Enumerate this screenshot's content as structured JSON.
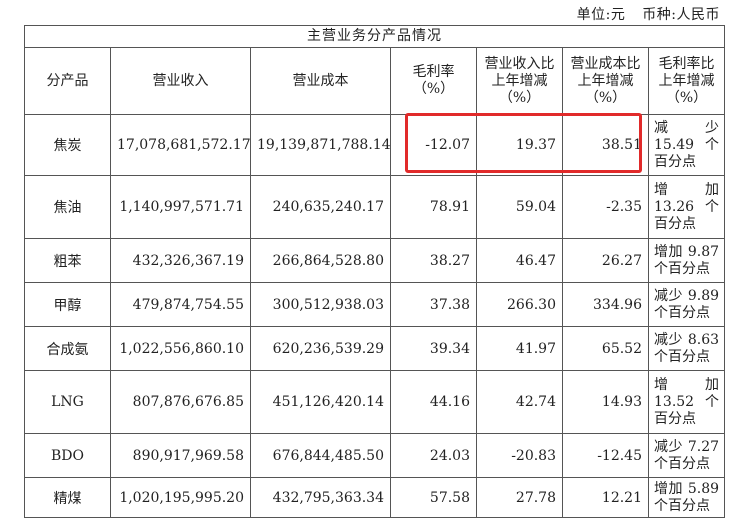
{
  "unit_line": {
    "unit": "单位:元",
    "currency": "币种:人民币"
  },
  "table": {
    "title": "主营业务分产品情况",
    "headers": {
      "product": "分产品",
      "revenue": "营业收入",
      "cost": "营业成本",
      "margin": "毛利率（%）",
      "revenue_change": "营业收入比上年增减（%）",
      "cost_change": "营业成本比上年增减（%）",
      "margin_change": "毛利率比上年增减（%）"
    },
    "rows": [
      {
        "product": "焦炭",
        "revenue": "17,078,681,572.17",
        "cost": "19,139,871,788.14",
        "margin": "-12.07",
        "revenue_change": "19.37",
        "cost_change": "38.51",
        "margin_change": "减少15.49个百分点"
      },
      {
        "product": "焦油",
        "revenue": "1,140,997,571.71",
        "cost": "240,635,240.17",
        "margin": "78.91",
        "revenue_change": "59.04",
        "cost_change": "-2.35",
        "margin_change": "增加13.26个百分点"
      },
      {
        "product": "粗苯",
        "revenue": "432,326,367.19",
        "cost": "266,864,528.80",
        "margin": "38.27",
        "revenue_change": "46.47",
        "cost_change": "26.27",
        "margin_change": "增加 9.87个百分点"
      },
      {
        "product": "甲醇",
        "revenue": "479,874,754.55",
        "cost": "300,512,938.03",
        "margin": "37.38",
        "revenue_change": "266.30",
        "cost_change": "334.96",
        "margin_change": "减少 9.89个百分点"
      },
      {
        "product": "合成氨",
        "revenue": "1,022,556,860.10",
        "cost": "620,236,539.29",
        "margin": "39.34",
        "revenue_change": "41.97",
        "cost_change": "65.52",
        "margin_change": "减少 8.63个百分点"
      },
      {
        "product": "LNG",
        "revenue": "807,876,676.85",
        "cost": "451,126,420.14",
        "margin": "44.16",
        "revenue_change": "42.74",
        "cost_change": "14.93",
        "margin_change": "增加13.52个百分点"
      },
      {
        "product": "BDO",
        "revenue": "890,917,969.58",
        "cost": "676,844,485.50",
        "margin": "24.03",
        "revenue_change": "-20.83",
        "cost_change": "-12.45",
        "margin_change": "减少 7.27个百分点"
      },
      {
        "product": "精煤",
        "revenue": "1,020,195,995.20",
        "cost": "432,795,363.34",
        "margin": "57.58",
        "revenue_change": "27.78",
        "cost_change": "12.21",
        "margin_change": "增加 5.89个百分点"
      }
    ]
  },
  "annotation": {
    "color": "#e12a2a"
  }
}
